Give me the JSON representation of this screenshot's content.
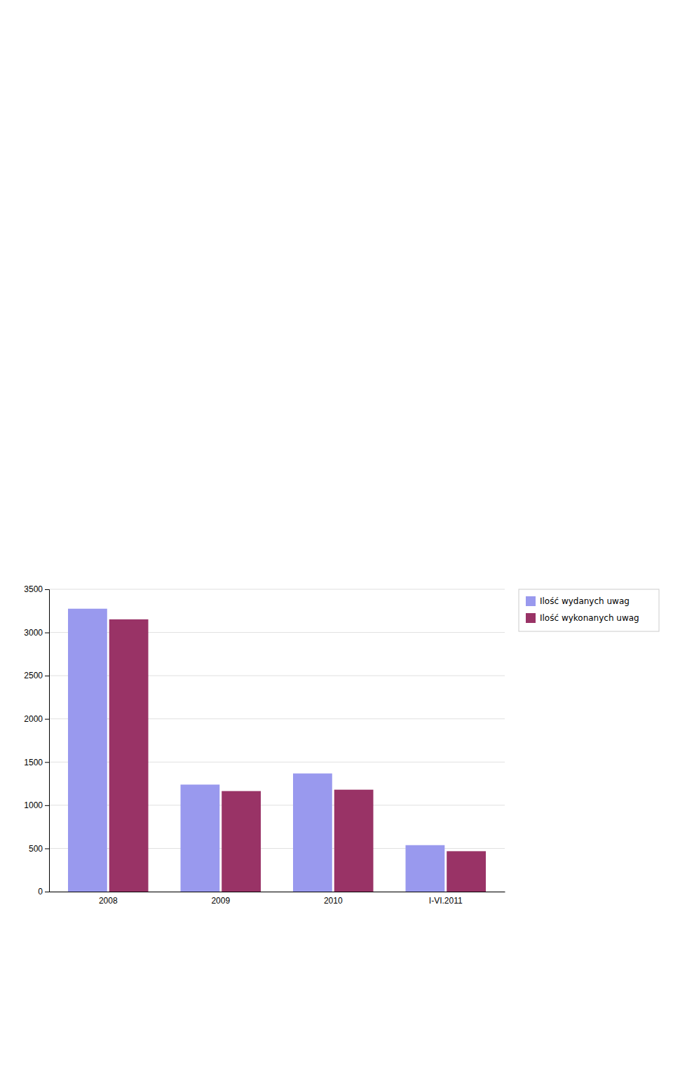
{
  "chart_data": {
    "type": "bar",
    "categories": [
      "2008",
      "2009",
      "2010",
      "I-VI.2011"
    ],
    "series": [
      {
        "name": "Ilość wydanych uwag",
        "color": "#9999EE",
        "values": [
          3275,
          1239,
          1368,
          538
        ]
      },
      {
        "name": "Ilość wykonanych uwag",
        "color": "#993366",
        "values": [
          3152,
          1164,
          1180,
          468
        ]
      }
    ],
    "ylim": [
      0,
      3500
    ],
    "yticks": [
      0,
      500,
      1000,
      1500,
      2000,
      2500,
      3000,
      3500
    ],
    "grid": true,
    "legend": "upper right"
  }
}
